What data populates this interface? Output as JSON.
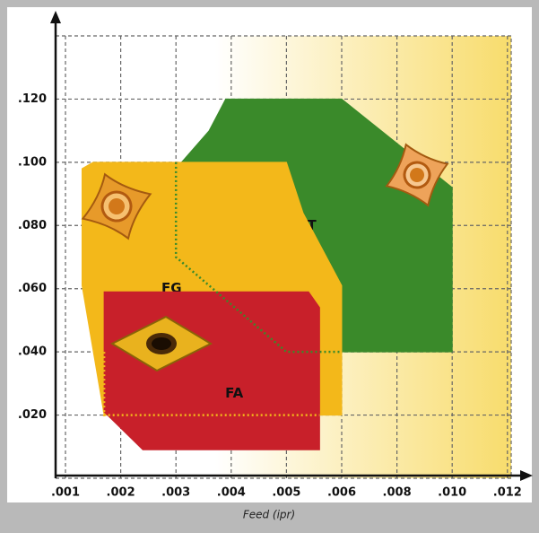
{
  "chart_data": {
    "type": "region",
    "x_label": "Feed (ipr)",
    "xticks": [
      {
        "value": 0.001,
        "label": ".001"
      },
      {
        "value": 0.002,
        "label": ".002"
      },
      {
        "value": 0.003,
        "label": ".003"
      },
      {
        "value": 0.004,
        "label": ".004"
      },
      {
        "value": 0.005,
        "label": ".005"
      },
      {
        "value": 0.006,
        "label": ".006"
      },
      {
        "value": 0.008,
        "label": ".008"
      },
      {
        "value": 0.01,
        "label": ".010"
      },
      {
        "value": 0.012,
        "label": ".012"
      }
    ],
    "ylim": [
      0,
      0.14
    ],
    "yticks": [
      {
        "value": 0.02,
        "label": ".020"
      },
      {
        "value": 0.04,
        "label": ".040"
      },
      {
        "value": 0.06,
        "label": ".060"
      },
      {
        "value": 0.08,
        "label": ".080"
      },
      {
        "value": 0.1,
        "label": ".100"
      },
      {
        "value": 0.12,
        "label": ".120"
      }
    ],
    "grid": true,
    "regions": [
      {
        "name": "MT",
        "color": "#3a8a2a",
        "points": [
          [
            0.003,
            0.098
          ],
          [
            0.0036,
            0.11
          ],
          [
            0.0039,
            0.12
          ],
          [
            0.006,
            0.12
          ],
          [
            0.01,
            0.092
          ],
          [
            0.01,
            0.04
          ],
          [
            0.006,
            0.04
          ],
          [
            0.0052,
            0.06
          ]
        ],
        "boundary": {
          "color": "#3a8a2a",
          "points": [
            [
              0.003,
              0.1
            ],
            [
              0.003,
              0.07
            ],
            [
              0.005,
              0.04
            ],
            [
              0.006,
              0.04
            ]
          ]
        }
      },
      {
        "name": "FG",
        "color": "#f3b81a",
        "points": [
          [
            0.0013,
            0.098
          ],
          [
            0.0015,
            0.1
          ],
          [
            0.005,
            0.1
          ],
          [
            0.0053,
            0.084
          ],
          [
            0.006,
            0.061
          ],
          [
            0.006,
            0.02
          ],
          [
            0.0017,
            0.02
          ],
          [
            0.0013,
            0.061
          ]
        ],
        "boundary": {
          "color": "#f3b81a",
          "points": [
            [
              0.0017,
              0.04
            ],
            [
              0.0017,
              0.02
            ],
            [
              0.0056,
              0.02
            ]
          ]
        }
      },
      {
        "name": "FA",
        "color": "#c8202a",
        "points": [
          [
            0.0017,
            0.059
          ],
          [
            0.0054,
            0.059
          ],
          [
            0.0056,
            0.054
          ],
          [
            0.0056,
            0.009
          ],
          [
            0.0024,
            0.009
          ],
          [
            0.0017,
            0.021
          ]
        ]
      }
    ]
  }
}
